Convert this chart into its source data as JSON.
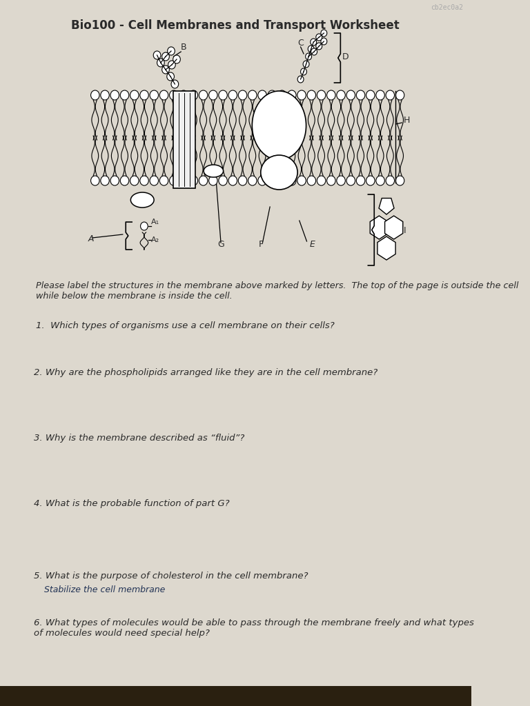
{
  "title": "Bio100 - Cell Membranes and Transport Worksheet",
  "paper_color": "#ddd8ce",
  "text_color": "#2a2a2a",
  "watermark": "cb2ec0a2",
  "q0": "Please label the structures in the membrane above marked by letters.  The top of the page is outside the cell while below the membrane is inside the cell.",
  "q1": "1.  Which types of organisms use a cell membrane on their cells?",
  "q2": "2. Why are the phospholipids arranged like they are in the cell membrane?",
  "q3": "3. Why is the membrane described as “fluid”?",
  "q4": "4. What is the probable function of part G?",
  "q5": "5. What is the purpose of cholesterol in the cell membrane?",
  "q5_answer": "Stabilize the cell membrane",
  "q6": "6. What types of molecules would be able to pass through the membrane freely and what types of molecules would need special help?"
}
